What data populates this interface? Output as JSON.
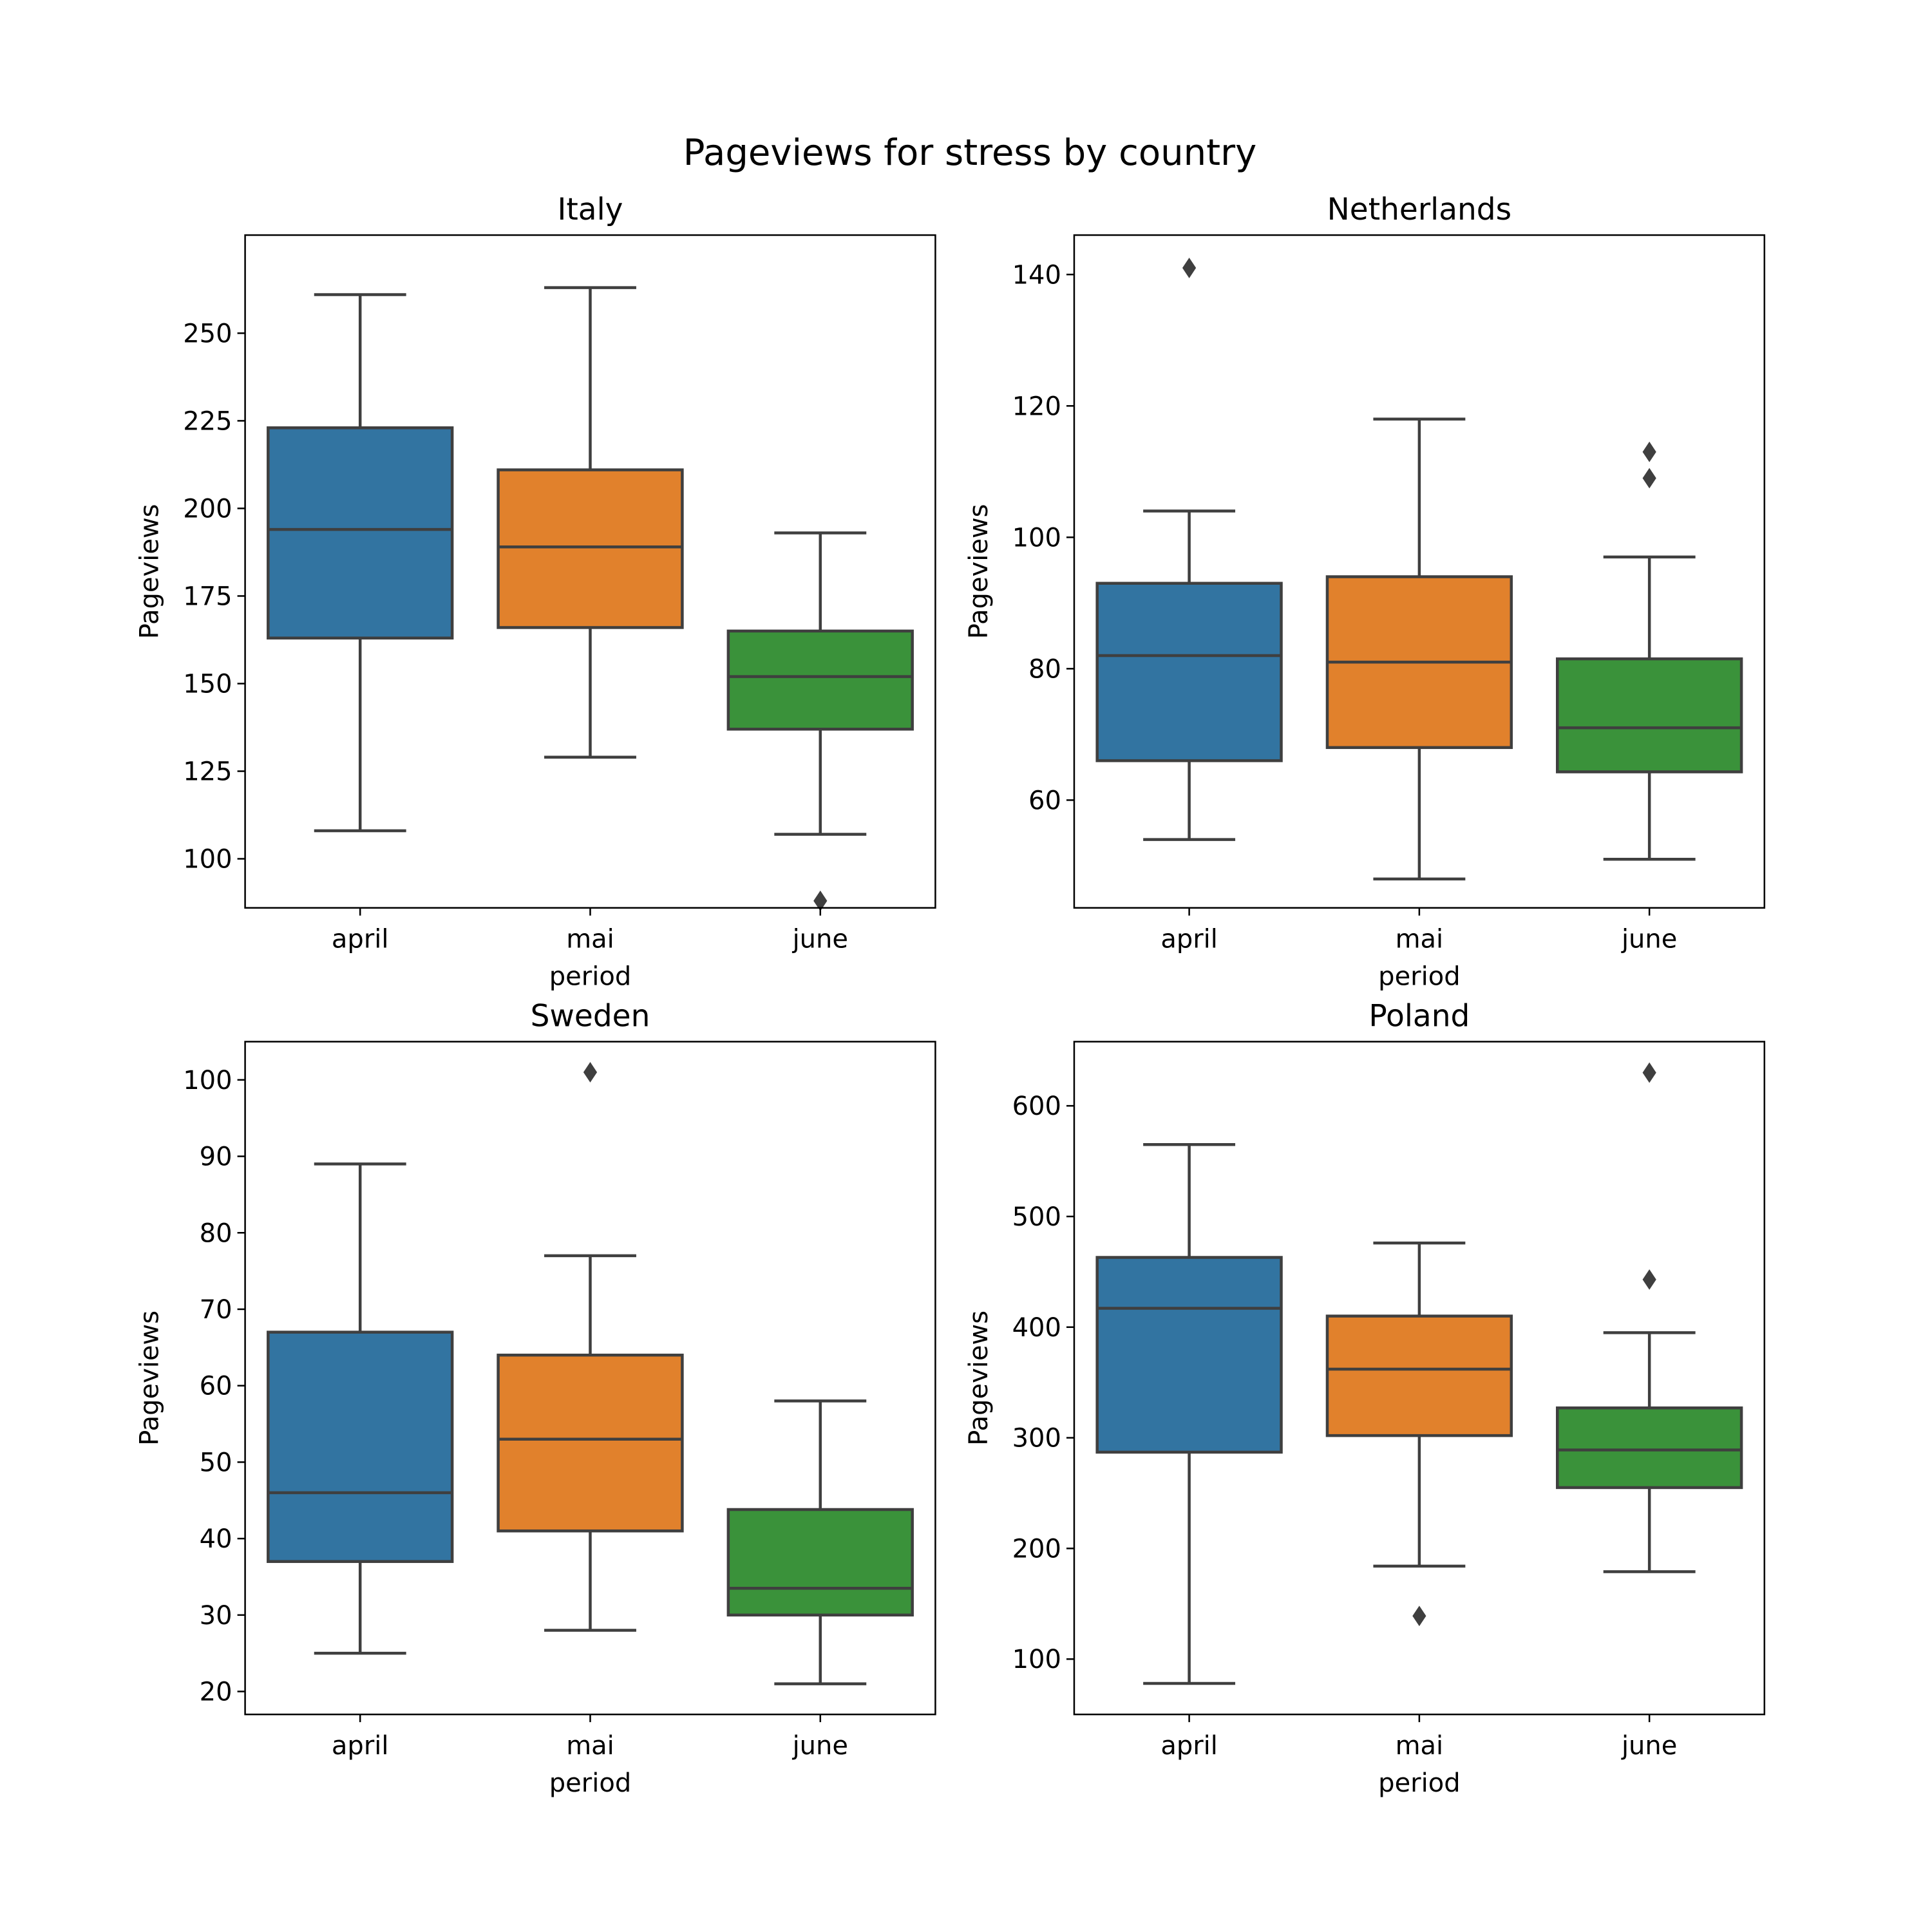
{
  "figure": {
    "title": "Pageviews for stress by country"
  },
  "chart_data": [
    {
      "type": "box",
      "title": "Italy",
      "xlabel": "period",
      "ylabel": "Pageviews",
      "categories": [
        "april",
        "mai",
        "june"
      ],
      "colors": [
        "#3274a1",
        "#e1812c",
        "#3a923a"
      ],
      "ylim": [
        86,
        278
      ],
      "yticks": [
        100,
        125,
        150,
        175,
        200,
        225,
        250
      ],
      "boxes": [
        {
          "whisker_low": 108,
          "q1": 163,
          "median": 194,
          "q3": 223,
          "whisker_high": 261,
          "outliers": []
        },
        {
          "whisker_low": 129,
          "q1": 166,
          "median": 189,
          "q3": 211,
          "whisker_high": 263,
          "outliers": []
        },
        {
          "whisker_low": 107,
          "q1": 137,
          "median": 152,
          "q3": 165,
          "whisker_high": 193,
          "outliers": [
            88
          ]
        }
      ]
    },
    {
      "type": "box",
      "title": "Netherlands",
      "xlabel": "period",
      "ylabel": "Pageviews",
      "categories": [
        "april",
        "mai",
        "june"
      ],
      "colors": [
        "#3274a1",
        "#e1812c",
        "#3a923a"
      ],
      "ylim": [
        43.6,
        146
      ],
      "yticks": [
        60,
        80,
        100,
        120,
        140
      ],
      "boxes": [
        {
          "whisker_low": 54,
          "q1": 66,
          "median": 82,
          "q3": 93,
          "whisker_high": 104,
          "outliers": [
            141
          ]
        },
        {
          "whisker_low": 48,
          "q1": 68,
          "median": 81,
          "q3": 94,
          "whisker_high": 118,
          "outliers": []
        },
        {
          "whisker_low": 51,
          "q1": 64.3,
          "median": 71,
          "q3": 81.5,
          "whisker_high": 97,
          "outliers": [
            109,
            113
          ]
        }
      ]
    },
    {
      "type": "box",
      "title": "Sweden",
      "xlabel": "period",
      "ylabel": "Pageviews",
      "categories": [
        "april",
        "mai",
        "june"
      ],
      "colors": [
        "#3274a1",
        "#e1812c",
        "#3a923a"
      ],
      "ylim": [
        17,
        105
      ],
      "yticks": [
        20,
        30,
        40,
        50,
        60,
        70,
        80,
        90,
        100
      ],
      "boxes": [
        {
          "whisker_low": 25,
          "q1": 37,
          "median": 46,
          "q3": 67,
          "whisker_high": 89,
          "outliers": []
        },
        {
          "whisker_low": 28,
          "q1": 41,
          "median": 53,
          "q3": 64,
          "whisker_high": 77,
          "outliers": [
            101
          ]
        },
        {
          "whisker_low": 21,
          "q1": 30,
          "median": 33.5,
          "q3": 43.8,
          "whisker_high": 58,
          "outliers": []
        }
      ]
    },
    {
      "type": "box",
      "title": "Poland",
      "xlabel": "period",
      "ylabel": "Pageviews",
      "categories": [
        "april",
        "mai",
        "june"
      ],
      "colors": [
        "#3274a1",
        "#e1812c",
        "#3a923a"
      ],
      "ylim": [
        50,
        658
      ],
      "yticks": [
        100,
        200,
        300,
        400,
        500,
        600
      ],
      "boxes": [
        {
          "whisker_low": 78,
          "q1": 287,
          "median": 417,
          "q3": 463,
          "whisker_high": 565,
          "outliers": []
        },
        {
          "whisker_low": 184,
          "q1": 302,
          "median": 362,
          "q3": 410,
          "whisker_high": 476,
          "outliers": [
            139
          ]
        },
        {
          "whisker_low": 179,
          "q1": 255,
          "median": 289,
          "q3": 327,
          "whisker_high": 395,
          "outliers": [
            443,
            630
          ]
        }
      ]
    }
  ]
}
